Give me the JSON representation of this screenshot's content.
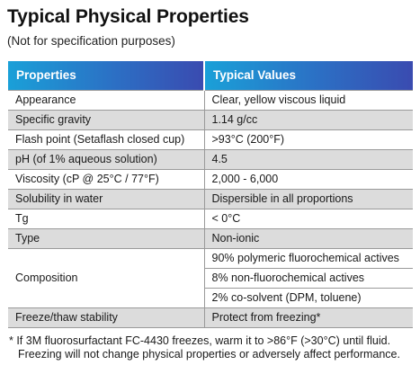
{
  "title": "Typical Physical Properties",
  "subtitle": "(Not for specification purposes)",
  "table": {
    "headers": [
      "Properties",
      "Typical Values"
    ],
    "rows": [
      {
        "property": "Appearance",
        "value": "Clear, yellow viscous liquid"
      },
      {
        "property": "Specific gravity",
        "value": "1.14 g/cc"
      },
      {
        "property": "Flash point (Setaflash closed cup)",
        "value": ">93°C (200°F)"
      },
      {
        "property": "pH (of 1% aqueous solution)",
        "value": "4.5"
      },
      {
        "property": "Viscosity (cP @ 25°C / 77°F)",
        "value": "2,000 - 6,000"
      },
      {
        "property": "Solubility in water",
        "value": "Dispersible in all proportions"
      },
      {
        "property": "Tg",
        "value": "< 0°C"
      },
      {
        "property": "Type",
        "value": "Non-ionic"
      },
      {
        "property": "Composition",
        "values": [
          "90% polymeric fluorochemical actives",
          "8% non-fluorochemical actives",
          "2% co-solvent (DPM, toluene)"
        ]
      },
      {
        "property": "Freeze/thaw stability",
        "value": "Protect from freezing*"
      }
    ]
  },
  "footnote": {
    "line1": "* If 3M fluorosurfactant FC-4430 freezes, warm it to >86°F (>30°C) until fluid.",
    "line2": "Freezing will not change physical properties or adversely affect performance."
  },
  "colors": {
    "header_gradient_start": "#1aa0d8",
    "header_gradient_end": "#3a4bb0",
    "shaded_row": "#dcdcdc",
    "rule": "#9a9a9a"
  }
}
